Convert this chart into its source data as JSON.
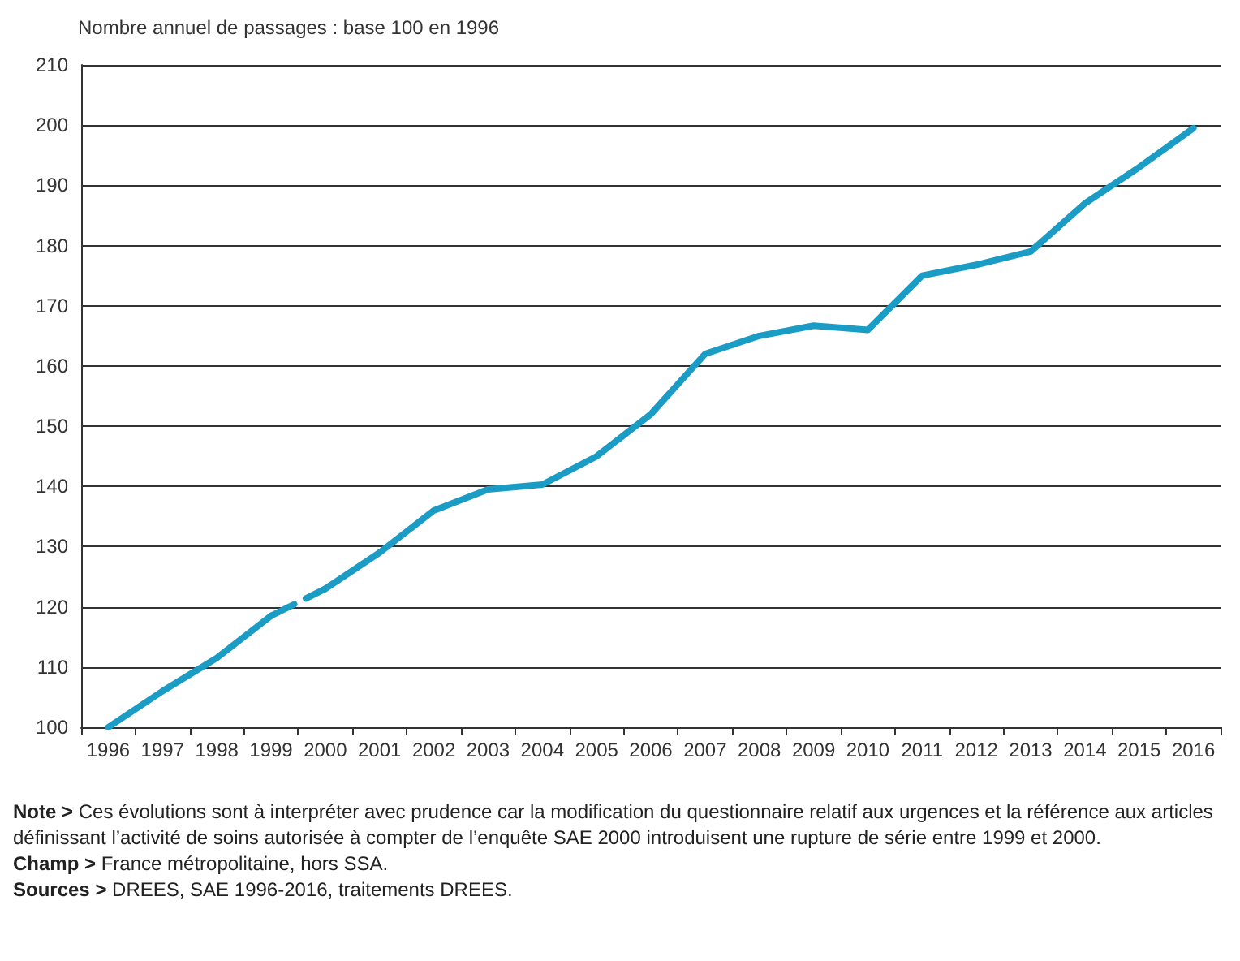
{
  "chart_data": {
    "type": "line",
    "ylabel": "Nombre annuel de passages : base 100 en 1996",
    "categories": [
      "1996",
      "1997",
      "1998",
      "1999",
      "2000",
      "2001",
      "2002",
      "2003",
      "2004",
      "2005",
      "2006",
      "2007",
      "2008",
      "2009",
      "2010",
      "2011",
      "2012",
      "2013",
      "2014",
      "2015",
      "2016"
    ],
    "series": [
      {
        "color": "#1a9cc4",
        "line_style": "solid",
        "values": [
          100,
          106,
          111.5,
          118.5,
          null,
          null,
          null,
          null,
          null,
          null,
          null,
          null,
          null,
          null,
          null,
          null,
          null,
          null,
          null,
          null,
          null
        ]
      },
      {
        "color": "#1a9cc4",
        "line_style": "dashed",
        "values": [
          null,
          null,
          null,
          118.5,
          123,
          null,
          null,
          null,
          null,
          null,
          null,
          null,
          null,
          null,
          null,
          null,
          null,
          null,
          null,
          null,
          null
        ]
      },
      {
        "color": "#1a9cc4",
        "line_style": "solid",
        "values": [
          null,
          null,
          null,
          null,
          123,
          129,
          136,
          139.5,
          140.3,
          145,
          152,
          162,
          165,
          166.7,
          166,
          175,
          176.8,
          179,
          187,
          193,
          199.5
        ]
      }
    ],
    "ylim": [
      100,
      210
    ],
    "yticks": [
      100,
      110,
      120,
      130,
      140,
      150,
      160,
      170,
      180,
      190,
      200,
      210
    ],
    "grid": "y",
    "marker": "none",
    "annotations": [
      "Note > Ces évolutions sont à interpréter avec prudence car la modification du questionnaire relatif aux urgences et la référence aux articles définissant l’activité de soins autorisée à compter de l’enquête SAE 2000 introduisent une rupture de série entre 1999 et 2000.",
      "Champ > France métropolitaine, hors SSA.",
      "Sources > DREES, SAE 1996-2016, traitements DREES."
    ]
  }
}
